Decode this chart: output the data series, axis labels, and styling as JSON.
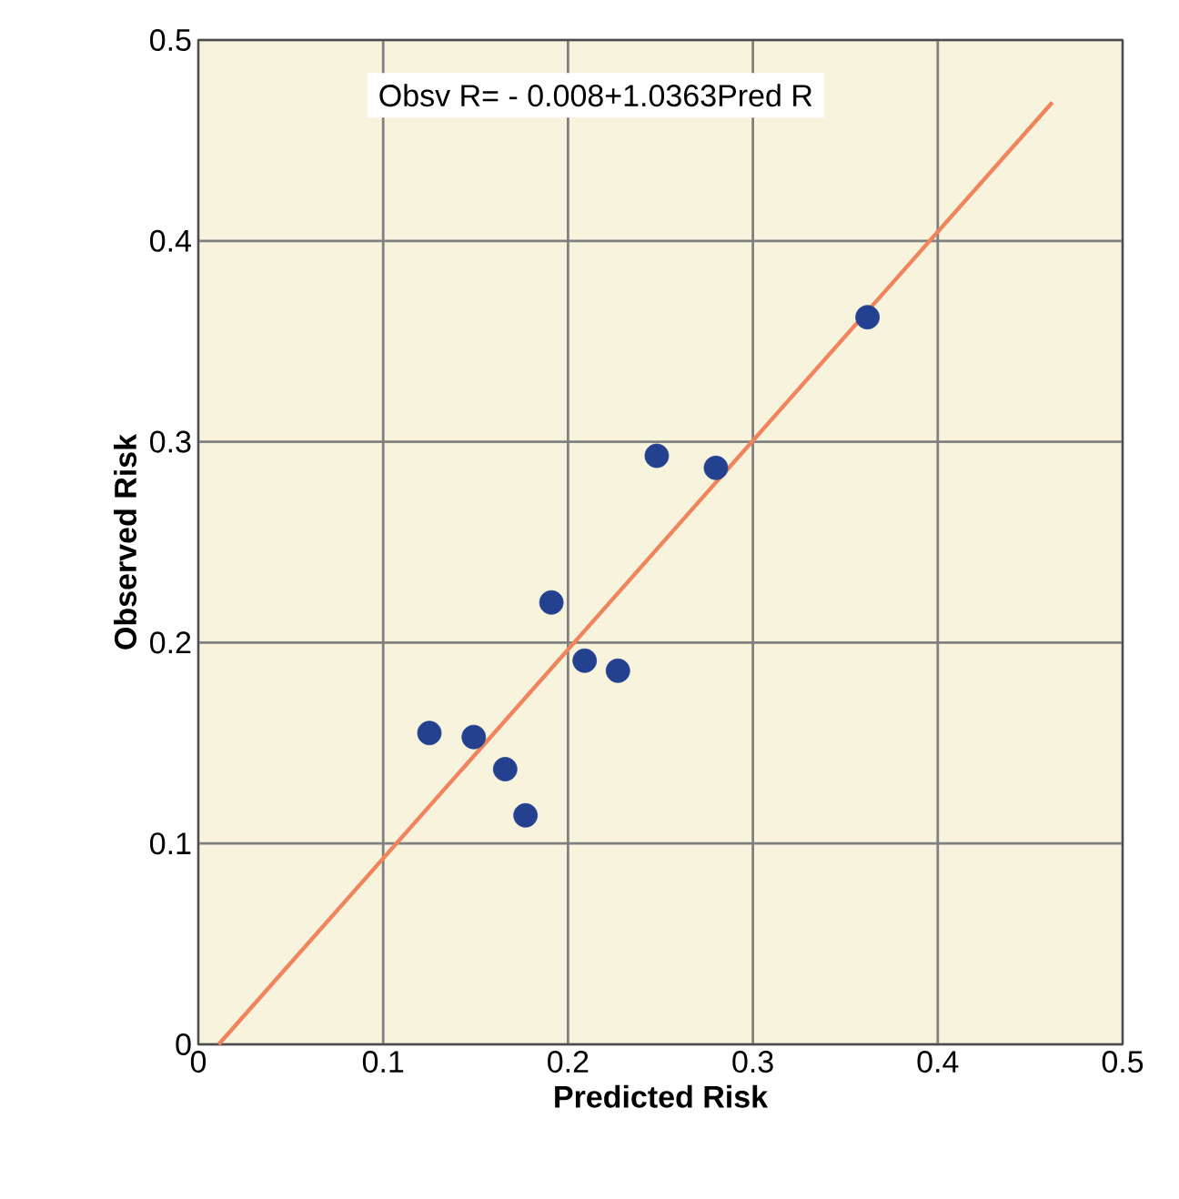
{
  "chart_data": {
    "type": "scatter",
    "xlabel": "Predicted Risk",
    "ylabel": "Observed Risk",
    "annotations": [
      "Obsv R= - 0.008+1.0363Pred R"
    ],
    "xlim": [
      0,
      0.5
    ],
    "ylim": [
      0,
      0.5
    ],
    "xticks": [
      0,
      0.1,
      0.2,
      0.3,
      0.4,
      0.5
    ],
    "yticks": [
      0,
      0.1,
      0.2,
      0.3,
      0.4,
      0.5
    ],
    "grid": true,
    "series": [
      {
        "marker": "circle",
        "color": "#23418f",
        "x": [
          0.125,
          0.149,
          0.166,
          0.177,
          0.191,
          0.209,
          0.227,
          0.248,
          0.28,
          0.362
        ],
        "values": [
          0.155,
          0.153,
          0.137,
          0.114,
          0.22,
          0.191,
          0.186,
          0.293,
          0.287,
          0.362
        ]
      },
      {
        "type": "line",
        "color": "#f0845c",
        "x": [
          0.011,
          0.462
        ],
        "values": [
          0,
          0.469
        ]
      }
    ]
  }
}
